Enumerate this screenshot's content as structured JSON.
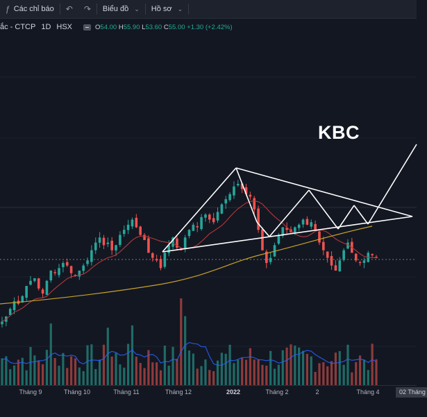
{
  "toolbar": {
    "indicators_label": "Các chỉ báo",
    "chart_label": "Biểu đồ",
    "profile_label": "Hồ sơ"
  },
  "legend": {
    "symbol": "ắc - CTCP",
    "interval": "1D",
    "exchange": "HSX",
    "open": "54.00",
    "high": "55.90",
    "low": "53.60",
    "close": "55.00",
    "change": "+1.30 (+2.42%)"
  },
  "annotation": {
    "ticker": "KBC"
  },
  "colors": {
    "background": "#131722",
    "up": "#26a69a",
    "down": "#ef5350",
    "ma_fast": "#b33a3a",
    "ma_slow": "#c9a227",
    "volume_ma": "#2962ff",
    "drawing": "#ffffff"
  },
  "chart_data": {
    "type": "candlestick",
    "x_labels": [
      "Tháng 9",
      "Tháng 10",
      "Tháng 11",
      "Tháng 12",
      "2022",
      "Tháng 2",
      "2",
      "Tháng 4"
    ],
    "cursor_x_label": "02 Tháng",
    "close_series_approx": [
      30,
      32,
      35,
      38,
      37,
      40,
      44,
      46,
      47,
      43,
      41,
      46,
      50,
      49,
      51,
      53,
      52,
      49,
      48,
      50,
      52,
      54,
      58,
      61,
      63,
      60,
      61,
      58,
      60,
      64,
      66,
      68,
      70,
      67,
      64,
      62,
      57,
      55,
      54,
      51,
      57,
      60,
      63,
      59,
      58,
      63,
      66,
      68,
      67,
      71,
      72,
      70,
      69,
      73,
      76,
      78,
      80,
      83,
      84,
      82,
      80,
      79,
      74,
      66,
      58,
      53,
      55,
      60,
      64,
      67,
      66,
      65,
      67,
      68,
      70,
      68,
      69,
      66,
      61,
      58,
      55,
      52,
      50,
      54,
      58,
      61,
      57,
      54,
      53,
      54,
      57,
      56,
      55
    ]
  }
}
